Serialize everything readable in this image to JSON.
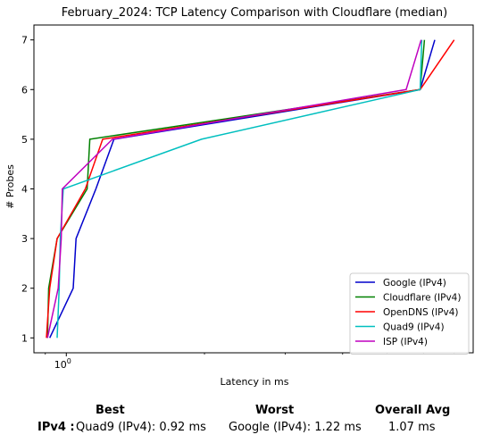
{
  "chart_data": {
    "type": "line",
    "title": "February_2024: TCP Latency Comparison with Cloudflare (median)",
    "xlabel": "Latency in ms",
    "ylabel": "# Probes",
    "xscale": "log",
    "xlim": [
      0.85,
      7.7
    ],
    "ylim": [
      0.7,
      7.3
    ],
    "yticks": [
      1,
      2,
      3,
      4,
      5,
      6,
      7
    ],
    "xticks": [
      {
        "value": 1.0,
        "label": "10"
      }
    ],
    "grid": false,
    "legend_position": "lower-right",
    "series": [
      {
        "name": "Google (IPv4)",
        "color": "#0000cc",
        "points": [
          [
            0.92,
            1
          ],
          [
            1.035,
            2
          ],
          [
            1.05,
            3
          ],
          [
            1.16,
            4
          ],
          [
            1.27,
            5
          ],
          [
            5.9,
            6
          ],
          [
            6.35,
            7
          ]
        ]
      },
      {
        "name": "Cloudflare (IPv4)",
        "color": "#008000",
        "points": [
          [
            0.91,
            1
          ],
          [
            0.915,
            2
          ],
          [
            0.955,
            3
          ],
          [
            1.11,
            4
          ],
          [
            1.125,
            5
          ],
          [
            5.9,
            6
          ],
          [
            6.03,
            7
          ]
        ]
      },
      {
        "name": "OpenDNS (IPv4)",
        "color": "#ff0000",
        "points": [
          [
            0.905,
            1
          ],
          [
            0.92,
            2
          ],
          [
            0.955,
            3
          ],
          [
            1.1,
            4
          ],
          [
            1.2,
            5
          ],
          [
            5.9,
            6
          ],
          [
            7.0,
            7
          ]
        ]
      },
      {
        "name": "Quad9 (IPv4)",
        "color": "#00bfbf",
        "points": [
          [
            0.955,
            1
          ],
          [
            0.965,
            2
          ],
          [
            0.97,
            3
          ],
          [
            0.985,
            4
          ],
          [
            1.97,
            5
          ],
          [
            5.9,
            6
          ],
          [
            5.95,
            7
          ]
        ]
      },
      {
        "name": "ISP (IPv4)",
        "color": "#bf00bf",
        "points": [
          [
            0.91,
            1
          ],
          [
            0.96,
            2
          ],
          [
            0.975,
            3
          ],
          [
            0.98,
            4
          ],
          [
            1.26,
            5
          ],
          [
            5.5,
            6
          ],
          [
            5.93,
            7
          ]
        ]
      }
    ]
  },
  "summary": {
    "headers": {
      "best": "Best",
      "worst": "Worst",
      "avg": "Overall Avg"
    },
    "row_label": "IPv4 :",
    "best": "Quad9 (IPv4): 0.92 ms",
    "worst": "Google (IPv4): 1.22 ms",
    "avg": "1.07 ms"
  }
}
